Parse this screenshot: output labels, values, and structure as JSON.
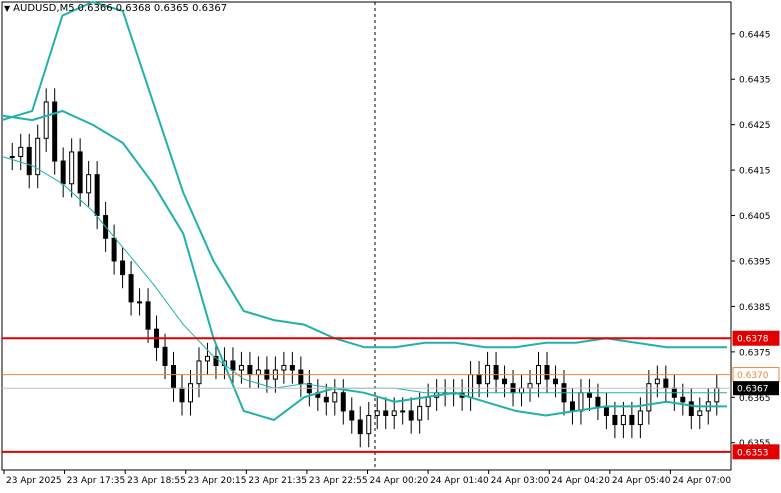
{
  "header": {
    "symbol": "AUDUSD,M5",
    "ohlc": "0.6366 0.6368 0.6365 0.6367"
  },
  "colors": {
    "candle": "#000000",
    "band": "#20b2aa",
    "mid": "#20b2aa",
    "resistance": "#e00000",
    "pivot": "#e8873a",
    "price_tag_bg": "#000000",
    "level_tag_bg": "#e00000",
    "grid": "#c0c0c0"
  },
  "chart_data": {
    "type": "candlestick",
    "y_ticks": [
      "0.6445",
      "0.6435",
      "0.6425",
      "0.6415",
      "0.6405",
      "0.6395",
      "0.6385",
      "0.6375",
      "0.6365",
      "0.6355"
    ],
    "x_ticks": [
      "23 Apr 2025",
      "23 Apr 17:35",
      "23 Apr 18:55",
      "23 Apr 20:15",
      "23 Apr 21:35",
      "23 Apr 22:55",
      "24 Apr 00:20",
      "24 Apr 01:40",
      "24 Apr 03:00",
      "24 Apr 04:20",
      "24 Apr 05:40",
      "24 Apr 07:00"
    ],
    "ylim": [
      0.6349,
      0.6452
    ],
    "levels": [
      {
        "price": 0.6378,
        "label": "0.6378",
        "kind": "resistance"
      },
      {
        "price": 0.637,
        "label": "0.6370",
        "kind": "pivot"
      },
      {
        "price": 0.6353,
        "label": "0.6353",
        "kind": "support"
      }
    ],
    "current_price": {
      "price": 0.6367,
      "label": "0.6367"
    },
    "series": [
      {
        "name": "",
        "values": [
          0.6427,
          0.6426,
          0.6428,
          0.6425,
          0.6421,
          0.6412,
          0.6401,
          0.6378,
          0.6362,
          0.636,
          0.6365,
          0.6367,
          0.6366,
          0.6364,
          0.6365,
          0.6366,
          0.6364,
          0.6362,
          0.6361,
          0.6362,
          0.6363,
          0.6363,
          0.6364,
          0.6363,
          0.6363
        ]
      },
      {
        "name": "",
        "values": [
          0.6426,
          0.6428,
          0.6449,
          0.6452,
          0.645,
          0.643,
          0.641,
          0.6395,
          0.6384,
          0.6382,
          0.6381,
          0.6378,
          0.6376,
          0.6376,
          0.6377,
          0.6377,
          0.6376,
          0.6376,
          0.6377,
          0.6377,
          0.6378,
          0.6377,
          0.6376,
          0.6376,
          0.6376
        ]
      },
      {
        "name": "",
        "values": [
          0.6418,
          0.6416,
          0.6412,
          0.6406,
          0.6398,
          0.639,
          0.6381,
          0.6374,
          0.6369,
          0.6367,
          0.6368,
          0.6367,
          0.6367,
          0.6367,
          0.6366,
          0.6366,
          0.6366,
          0.6366,
          0.6366,
          0.6366,
          0.6366,
          0.6366,
          0.6366,
          0.6366,
          0.6366
        ]
      }
    ]
  }
}
